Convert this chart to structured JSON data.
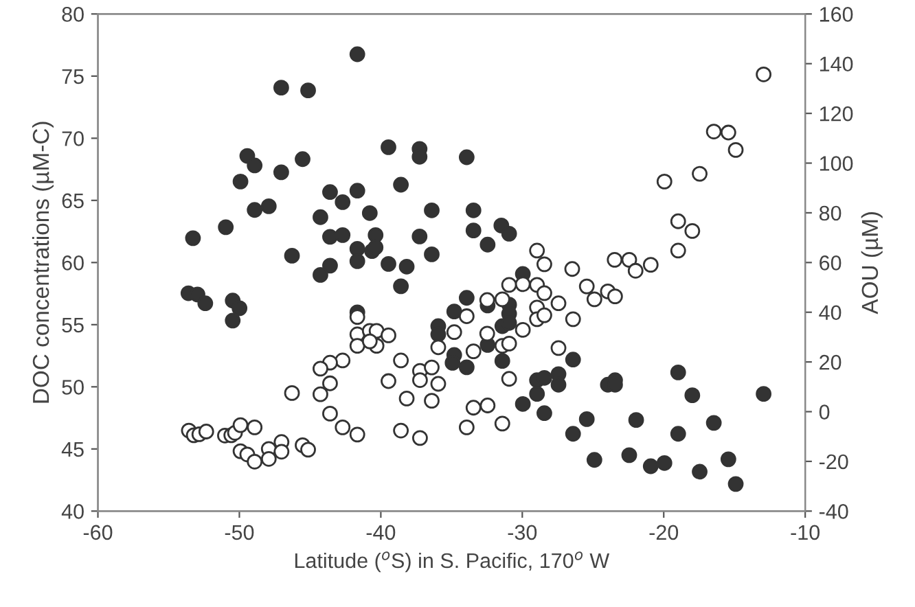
{
  "chart_data": {
    "type": "scatter",
    "xlabel": "Latitude ($^{o}$S) in S. Pacific, 170$^{o}$ W",
    "ylabel": "DOC concentrations (µM-C)",
    "y2label": "AOU (µM)",
    "xlim": [
      -60,
      -10
    ],
    "xticks": [
      -60,
      -50,
      -40,
      -30,
      -20,
      -10
    ],
    "ylim": [
      40,
      80
    ],
    "yticks": [
      40,
      45,
      50,
      55,
      60,
      65,
      70,
      75,
      80
    ],
    "y2lim": [
      -40,
      160
    ],
    "y2ticks": [
      -40,
      -20,
      0,
      20,
      40,
      60,
      80,
      100,
      120,
      140,
      160
    ],
    "grid": false,
    "legend": false,
    "marker": "circle",
    "series": [
      {
        "color": "#333333",
        "axis": "y",
        "x": [
          -41.66,
          -47.04,
          -45.14,
          -49.44,
          -48.92,
          -49.92,
          -47.04,
          -45.53,
          -39.46,
          -37.26,
          -37.26,
          -33.93,
          -38.58,
          -43.59,
          -41.66,
          -42.7,
          -48.92,
          -47.92,
          -50.96,
          -53.28,
          -44.27,
          -40.78,
          -36.4,
          -33.45,
          -33.45,
          -43.59,
          -42.7,
          -40.37,
          -37.26,
          -41.66,
          -40.62,
          -40.37,
          -46.28,
          -36.4,
          -41.66,
          -43.59,
          -39.46,
          -38.17,
          -44.27,
          -38.58,
          -32.45,
          -31.48,
          -30.93,
          -29.96,
          -33.93,
          -32.45,
          -30.93,
          -30.93,
          -31.41,
          -30.93,
          -34.81,
          -34.81,
          -33.93,
          -32.45,
          -31.41,
          -26.41,
          -29.96,
          -28.96,
          -28.96,
          -28.44,
          -27.44,
          -27.44,
          -28.44,
          -23.95,
          -23.44,
          -23.44,
          -18.98,
          -17.98,
          -12.94,
          -25.44,
          -21.95,
          -16.46,
          -26.41,
          -18.98,
          -24.9,
          -22.44,
          -20.92,
          -19.95,
          -17.46,
          -15.43,
          -14.91,
          -53.6,
          -52.96,
          -52.41,
          -50.47,
          -49.99,
          -50.47,
          -41.66,
          -35.94,
          -35.94,
          -34.93
        ],
        "values": [
          76.76,
          74.07,
          73.85,
          68.58,
          67.81,
          66.52,
          67.26,
          68.32,
          69.28,
          69.14,
          68.51,
          68.47,
          66.26,
          65.67,
          65.78,
          64.86,
          64.23,
          64.53,
          62.84,
          61.96,
          63.65,
          63.98,
          64.2,
          64.2,
          62.58,
          62.07,
          62.21,
          62.21,
          62.1,
          61.1,
          60.92,
          61.22,
          60.55,
          60.66,
          60.11,
          59.75,
          59.89,
          59.67,
          59.0,
          58.09,
          61.44,
          62.98,
          62.32,
          59.08,
          57.16,
          56.54,
          56.61,
          55.88,
          54.88,
          55.14,
          56.06,
          52.56,
          51.57,
          53.37,
          52.08,
          52.19,
          48.62,
          50.53,
          49.43,
          50.72,
          51.02,
          50.17,
          47.88,
          50.17,
          50.53,
          50.17,
          51.16,
          49.32,
          49.43,
          47.4,
          47.33,
          47.1,
          46.22,
          46.22,
          44.12,
          44.5,
          43.61,
          43.87,
          43.17,
          44.17,
          42.18,
          57.53,
          57.43,
          56.72,
          56.94,
          56.32,
          55.33,
          55.99,
          54.88,
          54.22,
          51.93
        ]
      },
      {
        "color": "#ffffff",
        "axis": "y2",
        "x": [
          -12.94,
          -16.46,
          -15.43,
          -14.91,
          -17.46,
          -19.95,
          -18.98,
          -17.98,
          -18.98,
          -28.96,
          -28.44,
          -26.47,
          -23.47,
          -22.44,
          -21.99,
          -20.92,
          -30.93,
          -29.96,
          -28.96,
          -28.44,
          -27.44,
          -25.44,
          -24.9,
          -23.95,
          -23.44,
          -26.41,
          -28.96,
          -28.96,
          -28.44,
          -29.96,
          -31.41,
          -32.48,
          -33.93,
          -34.81,
          -32.48,
          -33.45,
          -31.41,
          -30.93,
          -27.44,
          -30.93,
          -33.45,
          -32.45,
          -33.93,
          -31.41,
          -41.66,
          -41.66,
          -41.66,
          -40.78,
          -40.3,
          -40.3,
          -39.46,
          -40.78,
          -38.58,
          -42.7,
          -43.59,
          -44.27,
          -43.59,
          -44.27,
          -46.28,
          -39.46,
          -38.17,
          -37.23,
          -37.23,
          -36.4,
          -35.94,
          -36.4,
          -35.94,
          -43.59,
          -42.7,
          -41.66,
          -38.58,
          -37.23,
          -53.57,
          -53.22,
          -52.83,
          -52.34,
          -51.02,
          -50.57,
          -50.31,
          -49.92,
          -48.92,
          -49.92,
          -49.44,
          -48.92,
          -47.92,
          -47.92,
          -47.02,
          -47.02,
          -45.53,
          -45.14
        ],
        "values": [
          135.7,
          112.7,
          112.3,
          105.3,
          95.7,
          92.6,
          76.6,
          72.7,
          64.8,
          64.8,
          59.3,
          57.4,
          61.1,
          61.1,
          56.7,
          59.1,
          51.0,
          51.3,
          51.0,
          47.7,
          43.6,
          50.4,
          45.2,
          48.4,
          46.4,
          37.2,
          41.9,
          37.2,
          38.8,
          32.9,
          45.2,
          44.9,
          38.4,
          32.0,
          31.4,
          24.3,
          26.5,
          27.4,
          25.6,
          13.2,
          1.6,
          2.5,
          -6.3,
          -4.8,
          38.1,
          31.1,
          26.5,
          32.5,
          32.5,
          26.5,
          30.7,
          28.3,
          20.6,
          20.6,
          19.7,
          17.3,
          11.4,
          7.0,
          7.5,
          12.3,
          5.3,
          16.4,
          12.7,
          17.8,
          11.2,
          4.4,
          25.9,
          -0.8,
          -6.3,
          -9.2,
          -7.6,
          -10.6,
          -7.6,
          -9.5,
          -9.1,
          -8.0,
          -9.6,
          -9.5,
          -8.5,
          -5.4,
          -6.3,
          -15.9,
          -17.2,
          -20.1,
          -15.0,
          -19.0,
          -12.2,
          -16.1,
          -13.5,
          -15.3
        ]
      }
    ]
  }
}
